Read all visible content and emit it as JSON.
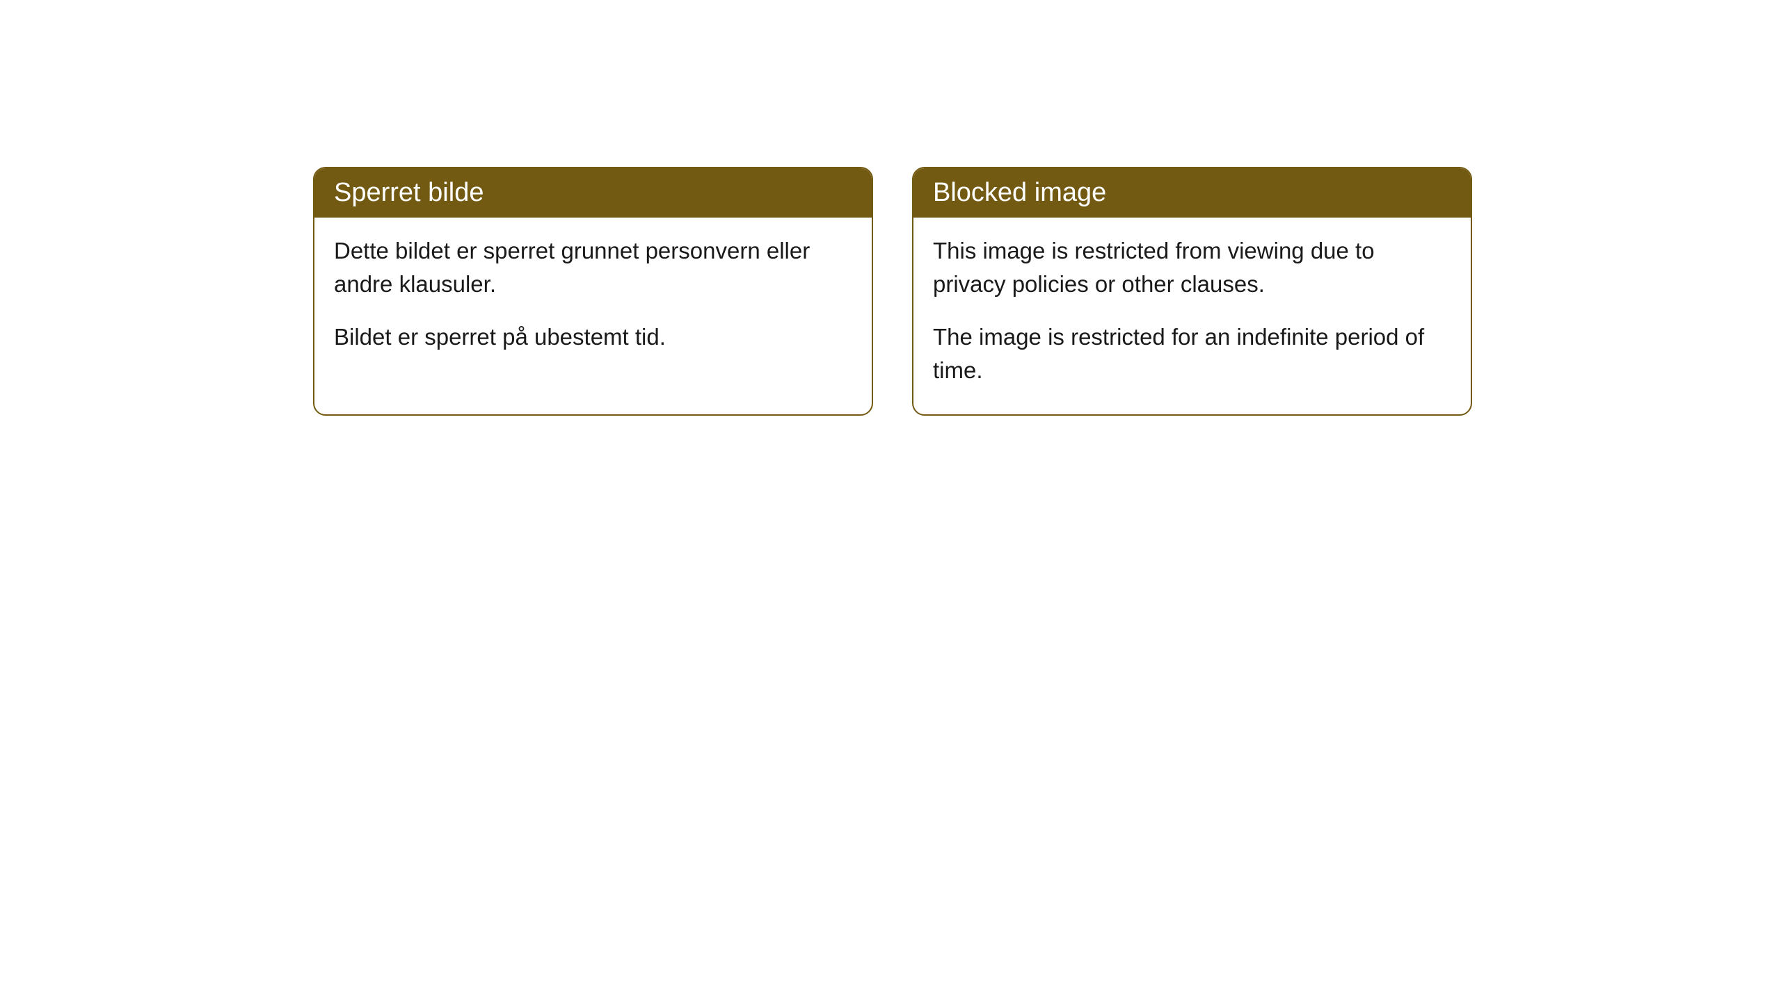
{
  "cards": [
    {
      "title": "Sperret bilde",
      "paragraph1": "Dette bildet er sperret grunnet personvern eller andre klausuler.",
      "paragraph2": "Bildet er sperret på ubestemt tid."
    },
    {
      "title": "Blocked image",
      "paragraph1": "This image is restricted from viewing due to privacy policies or other clauses.",
      "paragraph2": "The image is restricted for an indefinite period of time."
    }
  ],
  "styling": {
    "header_bg_color": "#735a13",
    "header_text_color": "#ffffff",
    "border_color": "#735a13",
    "body_bg_color": "#ffffff",
    "body_text_color": "#1a1a1a",
    "border_radius": 18,
    "header_fontsize": 38,
    "body_fontsize": 33
  }
}
